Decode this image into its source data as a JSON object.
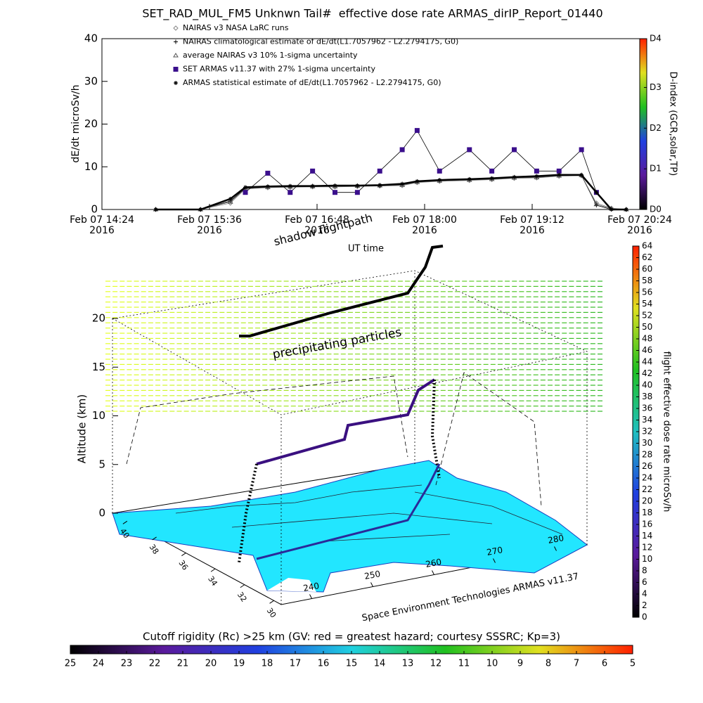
{
  "chart_data": [
    {
      "type": "line",
      "title": "SET_RAD_MUL_FM5 Unknwn Tail#  effective dose rate ARMAS_dirIP_Report_01440",
      "y_label": "dE/dt microSv/h",
      "xlim": [
        "2016-02-07T14:24",
        "2016-02-07T20:24"
      ],
      "xticks": [
        {
          "value": "2016-02-07T14:24",
          "label": "Feb 07 14:24 2016"
        },
        {
          "value": "2016-02-07T15:36",
          "label": "Feb 07 15:36 2016"
        },
        {
          "value": "2016-02-07T16:48",
          "label": "Feb 07 16:48 2016"
        },
        {
          "value": "2016-02-07T18:00",
          "label": "Feb 07 18:00 2016"
        },
        {
          "value": "2016-02-07T19:12",
          "label": "Feb 07 19:12 2016"
        },
        {
          "value": "2016-02-07T20:24",
          "label": "Feb 07 20:24 2016"
        }
      ],
      "ylim": [
        0,
        40
      ],
      "yticks": [
        0,
        10,
        20,
        30,
        40
      ],
      "x": [
        "2016-02-07T15:00",
        "2016-02-07T15:30",
        "2016-02-07T15:50",
        "2016-02-07T16:00",
        "2016-02-07T16:15",
        "2016-02-07T16:30",
        "2016-02-07T16:45",
        "2016-02-07T17:00",
        "2016-02-07T17:15",
        "2016-02-07T17:30",
        "2016-02-07T17:45",
        "2016-02-07T17:55",
        "2016-02-07T18:10",
        "2016-02-07T18:30",
        "2016-02-07T18:45",
        "2016-02-07T19:00",
        "2016-02-07T19:15",
        "2016-02-07T19:30",
        "2016-02-07T19:45",
        "2016-02-07T19:55",
        "2016-02-07T20:05",
        "2016-02-07T20:15"
      ],
      "series": [
        {
          "name": "NAIRAS v3 NASA LaRC runs",
          "color": "#888888",
          "marker": "diamond",
          "values": [
            0,
            0,
            1.5,
            4.8,
            5.1,
            5.2,
            5.3,
            5.3,
            5.4,
            5.5,
            5.6,
            6.3,
            6.6,
            6.8,
            7,
            7.3,
            7.4,
            7.8,
            7.9,
            1.5,
            0.3,
            0
          ]
        },
        {
          "name": "NAIRAS climatological estimate of dE/dt(L1.7057962 - L2.2794175, G0)",
          "color": "#000000",
          "marker": "plus",
          "values": [
            0,
            0,
            2,
            5,
            5.3,
            5.4,
            5.5,
            5.5,
            5.5,
            5.6,
            5.8,
            6.5,
            6.8,
            7,
            7.2,
            7.5,
            7.6,
            8,
            8,
            1,
            0,
            0
          ]
        },
        {
          "name": "average NAIRAS v3 10% 1-sigma uncertainty",
          "color": "#555555",
          "marker": "triangle",
          "values": [
            0,
            0,
            1.8,
            4.9,
            5.2,
            5.3,
            5.4,
            5.4,
            5.5,
            5.6,
            5.7,
            6.4,
            6.7,
            6.9,
            7.1,
            7.4,
            7.5,
            7.9,
            8,
            1.2,
            0.2,
            0
          ]
        },
        {
          "name": "SET ARMAS v11.37 with 27% 1-sigma uncertainty",
          "color": "#3a0f8c",
          "marker": "square",
          "values": [
            null,
            null,
            null,
            4,
            8.5,
            4,
            9,
            4,
            4,
            9,
            14,
            18.5,
            9,
            14,
            9,
            14,
            9,
            9,
            14,
            4,
            null,
            null
          ]
        },
        {
          "name": "ARMAS statistical estimate of dE/dt(L1.7057962 - L2.2794175, G0)",
          "color": "#000000",
          "marker": "asterisk",
          "values": [
            0,
            0,
            2.5,
            5.2,
            5.4,
            5.5,
            5.5,
            5.6,
            5.6,
            5.7,
            6,
            6.6,
            6.9,
            7.1,
            7.3,
            7.6,
            7.8,
            8.1,
            8.1,
            4,
            0,
            0
          ]
        }
      ]
    },
    {
      "type": "colorbar",
      "label": "D-index (GCR,solar,TP)",
      "colors": [
        "#000000",
        "#5a1a9c",
        "#2040e0",
        "#20c020",
        "#e0e020",
        "#ff2000"
      ],
      "ylim": [
        0,
        4.2
      ],
      "yticks": [
        {
          "value": 0,
          "label": "D0"
        },
        {
          "value": 1,
          "label": "D1"
        },
        {
          "value": 2,
          "label": "D2"
        },
        {
          "value": 3,
          "label": "D3"
        },
        {
          "value": 4.2,
          "label": "D4"
        }
      ]
    },
    {
      "type": "surface3d",
      "y_label": "Altitude (km)",
      "ylim": [
        0,
        20
      ],
      "yticks": [
        0,
        5,
        10,
        15,
        20
      ],
      "latlim": [
        41,
        29.5
      ],
      "latticks": [
        40,
        38,
        36,
        34,
        32,
        30
      ],
      "lonlim": [
        235,
        285
      ],
      "lonticks": [
        240,
        250,
        260,
        270,
        280
      ],
      "annotations": [
        "shadow flightpath",
        "UT time",
        "precipitating particles",
        "Space Environment Technologies ARMAS v11.37"
      ]
    },
    {
      "type": "colorbar",
      "label": "flight effective dose rate microSv/h",
      "colors": [
        "#000000",
        "#5a1a9c",
        "#2040e0",
        "#20c0c0",
        "#20c020",
        "#e0e020",
        "#ff2000"
      ],
      "ylim": [
        0,
        64
      ],
      "yticks": [
        0,
        2,
        4,
        6,
        8,
        10,
        12,
        14,
        16,
        18,
        20,
        22,
        24,
        26,
        28,
        30,
        32,
        34,
        36,
        38,
        40,
        42,
        44,
        46,
        48,
        50,
        52,
        54,
        56,
        58,
        60,
        62,
        64
      ]
    },
    {
      "type": "colorbar",
      "title": "Cutoff rigidity (Rc) >25 km (GV: red = greatest hazard; courtesy SSSRC; Kp=3)",
      "colors": [
        "#000000",
        "#5a1a9c",
        "#2040e0",
        "#20d0e0",
        "#20c020",
        "#e0e020",
        "#ff2000"
      ],
      "xlim": [
        25,
        5
      ],
      "xticks": [
        25,
        24,
        23,
        22,
        21,
        20,
        19,
        18,
        17,
        16,
        15,
        14,
        13,
        12,
        11,
        10,
        9,
        8,
        7,
        6,
        5
      ]
    }
  ]
}
